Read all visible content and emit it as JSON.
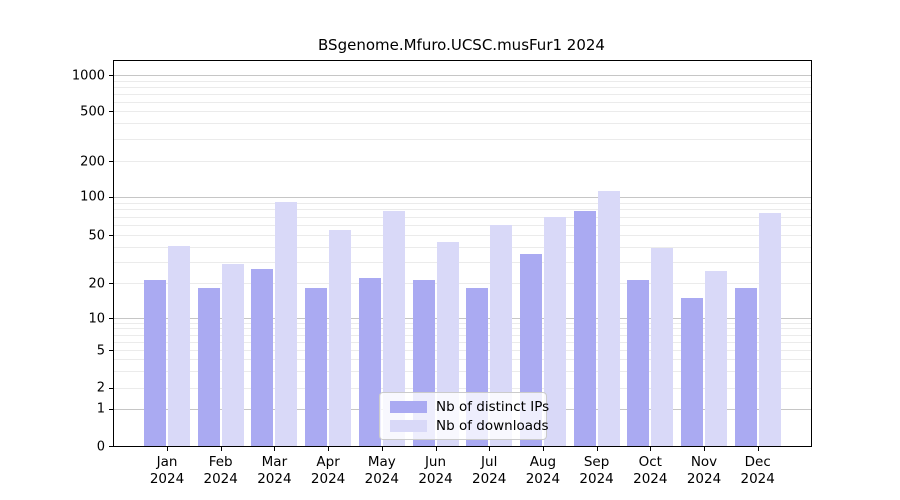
{
  "title": "BSgenome.Mfuro.UCSC.musFur1 2024",
  "legend": {
    "items": [
      {
        "label": "Nb of distinct IPs",
        "color": "#aaaaf2"
      },
      {
        "label": "Nb of downloads",
        "color": "#d9d9f8"
      }
    ]
  },
  "colors": {
    "bar_distinct_ips": "#aaaaf2",
    "bar_downloads": "#d9d9f8",
    "grid_major": "#c6c6c6",
    "grid_minor": "#ebebeb",
    "axis": "#000000"
  },
  "chart_data": {
    "type": "bar",
    "title": "BSgenome.Mfuro.UCSC.musFur1 2024",
    "categories": [
      "Jan",
      "Feb",
      "Mar",
      "Apr",
      "May",
      "Jun",
      "Jul",
      "Aug",
      "Sep",
      "Oct",
      "Nov",
      "Dec"
    ],
    "year_label": "2024",
    "series": [
      {
        "name": "Nb of distinct IPs",
        "color": "#aaaaf2",
        "values": [
          21,
          18,
          26,
          18,
          22,
          21,
          18,
          35,
          78,
          21,
          15,
          18
        ]
      },
      {
        "name": "Nb of downloads",
        "color": "#d9d9f8",
        "values": [
          41,
          29,
          91,
          55,
          78,
          44,
          60,
          70,
          112,
          39,
          25,
          75
        ]
      }
    ],
    "xlabel": "",
    "ylabel": "",
    "yscale": "log-like (0,1,2,5,10,20,50,100,200,500,1000)",
    "yticks": [
      0,
      1,
      2,
      5,
      10,
      20,
      50,
      100,
      200,
      500,
      1000
    ],
    "ytick_labels": [
      "0",
      "1",
      "2",
      "5",
      "10",
      "20",
      "50",
      "100",
      "200",
      "500",
      "1000"
    ],
    "ylim": [
      0,
      1000
    ],
    "grid": true,
    "legend_position": "bottom-center"
  }
}
